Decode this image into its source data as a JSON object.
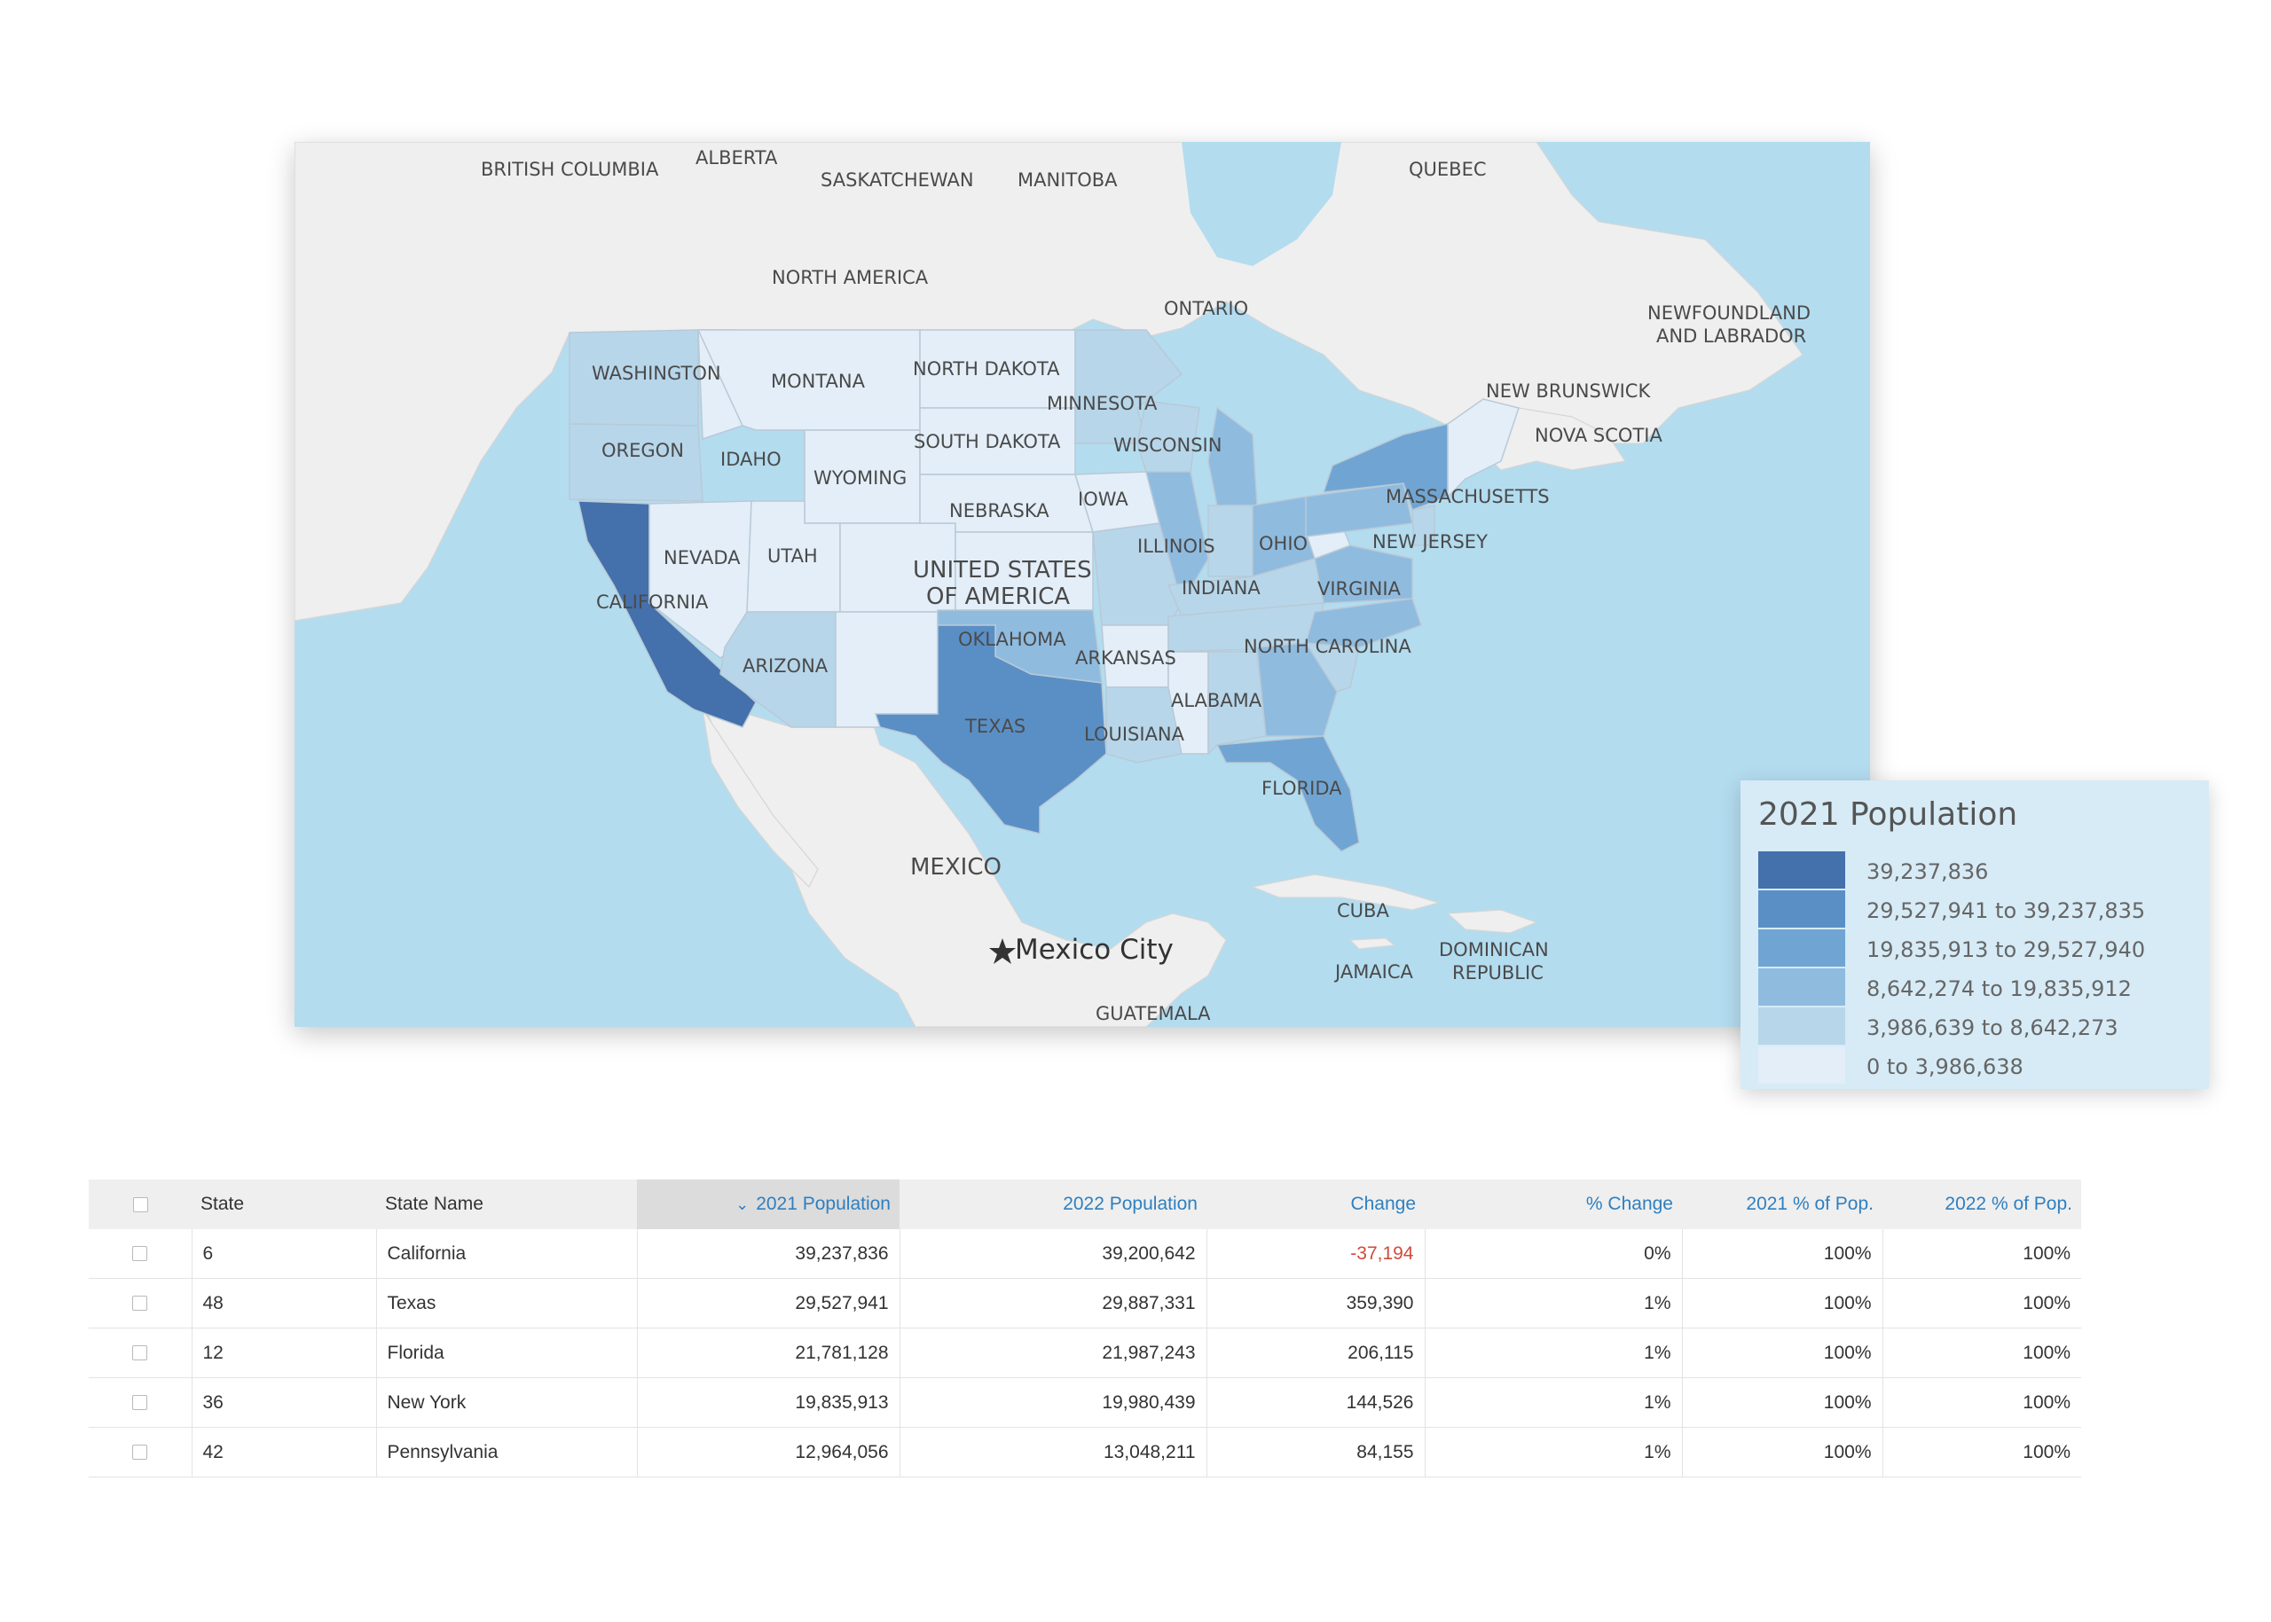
{
  "map": {
    "choropleth_colors": {
      "bin1": "#4470ab",
      "bin2": "#5a8fc6",
      "bin3": "#70a5d3",
      "bin4": "#8fbbdf",
      "bin5": "#b7d6ea",
      "bin6": "#e3eef8"
    },
    "land_color": "#efefef",
    "water_color": "#b3dcef",
    "labels": {
      "british_columbia": "BRITISH COLUMBIA",
      "alberta": "ALBERTA",
      "saskatchewan": "SASKATCHEWAN",
      "manitoba": "MANITOBA",
      "quebec": "QUEBEC",
      "north_america": "NORTH AMERICA",
      "ontario": "ONTARIO",
      "newfoundland_1": "NEWFOUNDLAND",
      "newfoundland_2": "AND LABRADOR",
      "new_brunswick": "NEW BRUNSWICK",
      "nova_scotia": "NOVA SCOTIA",
      "washington": "WASHINGTON",
      "montana": "MONTANA",
      "north_dakota": "NORTH DAKOTA",
      "minnesota": "MINNESOTA",
      "oregon": "OREGON",
      "idaho": "IDAHO",
      "south_dakota": "SOUTH DAKOTA",
      "wisconsin": "WISCONSIN",
      "wyoming": "WYOMING",
      "iowa": "IOWA",
      "nebraska": "NEBRASKA",
      "massachusetts": "MASSACHUSETTS",
      "nevada": "NEVADA",
      "utah": "UTAH",
      "usa_1": "UNITED STATES",
      "usa_2": "OF AMERICA",
      "illinois": "ILLINOIS",
      "ohio": "OHIO",
      "new_jersey": "NEW JERSEY",
      "california": "CALIFORNIA",
      "indiana": "INDIANA",
      "virginia": "VIRGINIA",
      "oklahoma": "OKLAHOMA",
      "arizona": "ARIZONA",
      "arkansas": "ARKANSAS",
      "north_carolina": "NORTH CAROLINA",
      "alabama": "ALABAMA",
      "texas": "TEXAS",
      "louisiana": "LOUISIANA",
      "florida": "FLORIDA",
      "mexico": "MEXICO",
      "cuba": "CUBA",
      "mexico_city": "Mexico City",
      "dominican_1": "DOMINICAN",
      "dominican_2": "REPUBLIC",
      "jamaica": "JAMAICA",
      "guatemala": "GUATEMALA"
    }
  },
  "legend": {
    "title": "2021 Population",
    "bins": [
      {
        "range": "39,237,836",
        "color": "#4470ab"
      },
      {
        "range": "29,527,941 to 39,237,835",
        "color": "#5a8fc6"
      },
      {
        "range": "19,835,913 to 29,527,940",
        "color": "#70a5d3"
      },
      {
        "range": "8,642,274 to 19,835,912",
        "color": "#8fbbdf"
      },
      {
        "range": "3,986,639 to 8,642,273",
        "color": "#b7d6ea"
      },
      {
        "range": "0 to 3,986,638",
        "color": "#e3eef8"
      }
    ]
  },
  "table": {
    "columns": {
      "state": "State",
      "state_name": "State Name",
      "pop2021": "2021 Population",
      "pop2022": "2022 Population",
      "change": "Change",
      "pct_change": "% Change",
      "pct2021": "2021 % of Pop.",
      "pct2022": "2022 % of Pop."
    },
    "rows": [
      {
        "state": "6",
        "state_name": "California",
        "pop2021": "39,237,836",
        "pop2022": "39,200,642",
        "change": "-37,194",
        "pct_change": "0%",
        "pct2021": "100%",
        "pct2022": "100%"
      },
      {
        "state": "48",
        "state_name": "Texas",
        "pop2021": "29,527,941",
        "pop2022": "29,887,331",
        "change": "359,390",
        "pct_change": "1%",
        "pct2021": "100%",
        "pct2022": "100%"
      },
      {
        "state": "12",
        "state_name": "Florida",
        "pop2021": "21,781,128",
        "pop2022": "21,987,243",
        "change": "206,115",
        "pct_change": "1%",
        "pct2021": "100%",
        "pct2022": "100%"
      },
      {
        "state": "36",
        "state_name": "New York",
        "pop2021": "19,835,913",
        "pop2022": "19,980,439",
        "change": "144,526",
        "pct_change": "1%",
        "pct2021": "100%",
        "pct2022": "100%"
      },
      {
        "state": "42",
        "state_name": "Pennsylvania",
        "pop2021": "12,964,056",
        "pop2022": "13,048,211",
        "change": "84,155",
        "pct_change": "1%",
        "pct2021": "100%",
        "pct2022": "100%"
      }
    ]
  }
}
